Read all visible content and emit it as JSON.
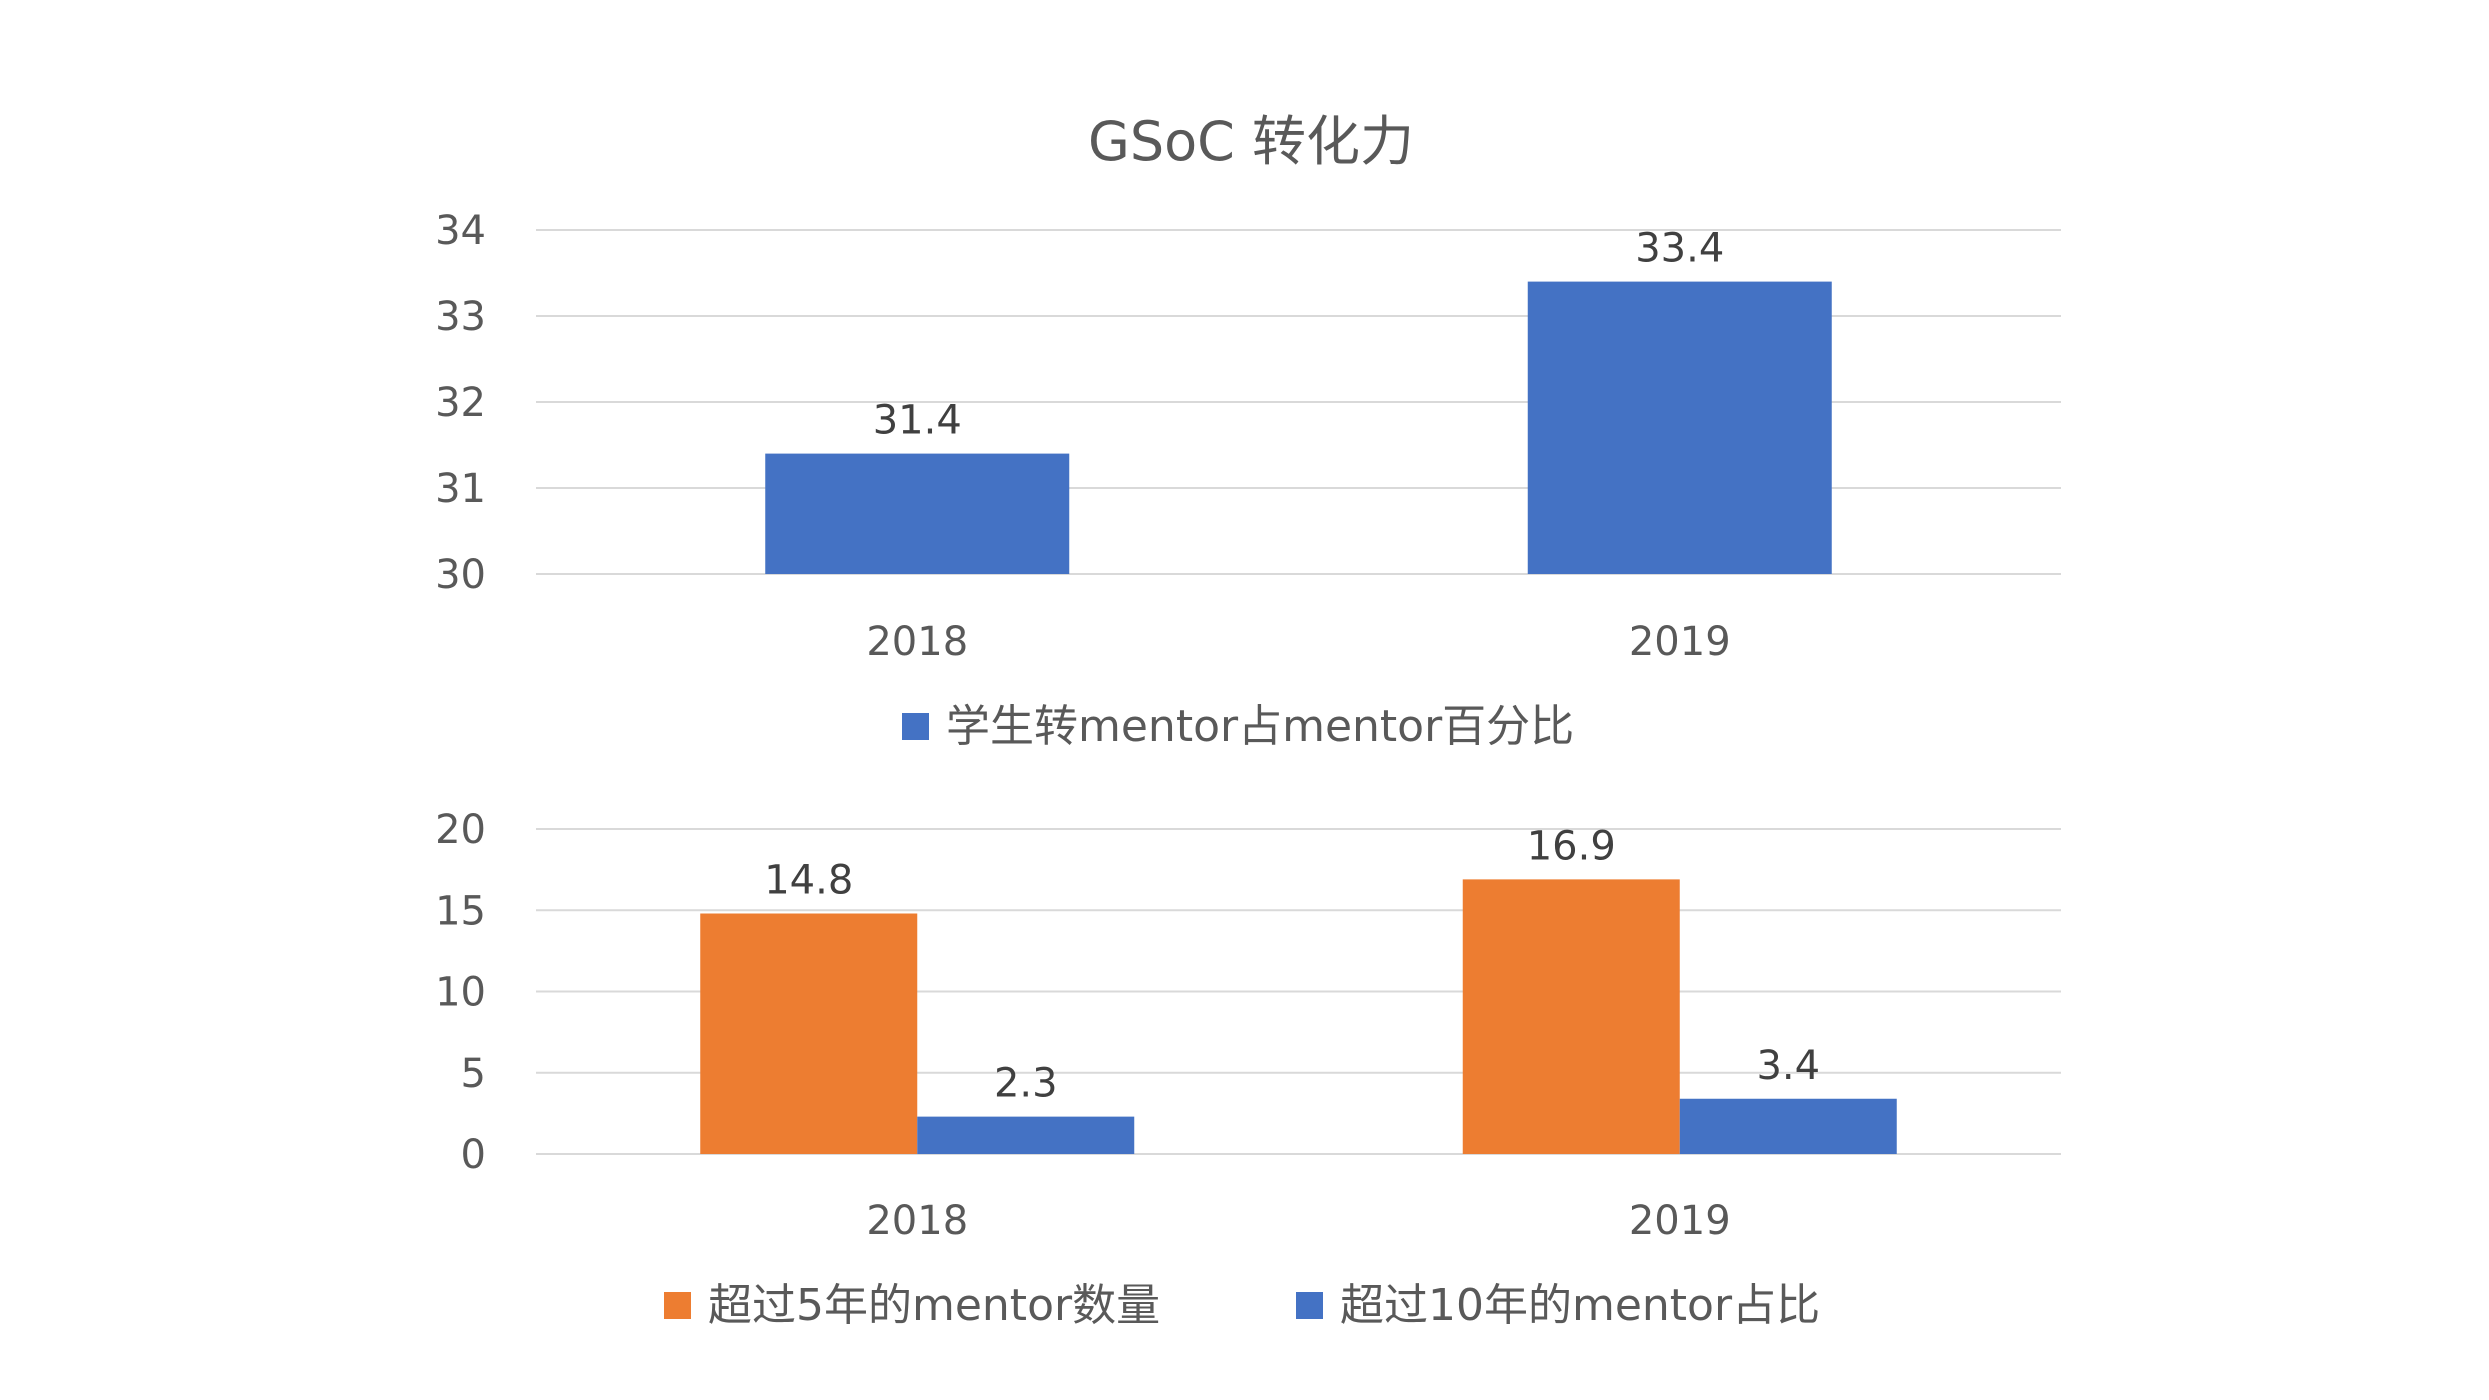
{
  "title": "GSoC 转化力",
  "colors": {
    "blue": "#4472C4",
    "orange": "#ED7D31",
    "grid": "#D9D9D9",
    "text": "#595959",
    "label": "#404040"
  },
  "chart_data": [
    {
      "type": "bar",
      "title": "GSoC 转化力",
      "categories": [
        "2018",
        "2019"
      ],
      "series": [
        {
          "name": "学生转mentor占mentor百分比",
          "color": "#4472C4",
          "values": [
            31.4,
            33.4
          ]
        }
      ],
      "ylim": [
        30,
        34
      ],
      "yticks": [
        30,
        31,
        32,
        33,
        34
      ],
      "grid": true,
      "legend": "bottom"
    },
    {
      "type": "bar",
      "categories": [
        "2018",
        "2019"
      ],
      "series": [
        {
          "name": "超过5年的mentor数量",
          "color": "#ED7D31",
          "values": [
            14.8,
            16.9
          ]
        },
        {
          "name": "超过10年的mentor占比",
          "color": "#4472C4",
          "values": [
            2.3,
            3.4
          ]
        }
      ],
      "ylim": [
        0,
        20
      ],
      "yticks": [
        0,
        5,
        10,
        15,
        20
      ],
      "grid": true,
      "legend": "bottom"
    }
  ]
}
